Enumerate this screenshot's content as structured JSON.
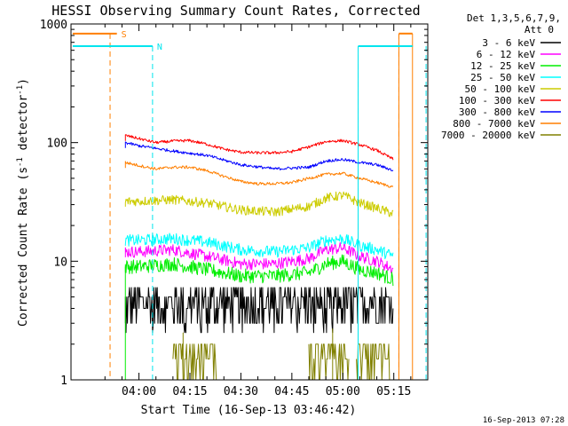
{
  "chart_data": {
    "type": "line",
    "title": "HESSI Observing Summary Count Rates, Corrected",
    "xlabel": "Start Time (16-Sep-13 03:46:42)",
    "ylabel_parts": {
      "base": "Corrected Count Rate (s",
      "sup1": "-1",
      "mid": " detector",
      "sup2": "-1",
      "end": ")"
    },
    "y_scale": "log",
    "ylim": [
      1,
      1000
    ],
    "y_ticks": [
      "1",
      "10",
      "100",
      "1000"
    ],
    "xlim_minutes": [
      -20,
      85
    ],
    "x_ticks": [
      {
        "label": "04:00",
        "minute": 0
      },
      {
        "label": "04:15",
        "minute": 15
      },
      {
        "label": "04:30",
        "minute": 30
      },
      {
        "label": "04:45",
        "minute": 45
      },
      {
        "label": "05:00",
        "minute": 60
      },
      {
        "label": "05:15",
        "minute": 75
      }
    ],
    "legend_header": [
      "Det 1,3,5,6,7,9,",
      "Att 0"
    ],
    "timestamp": "16-Sep-2013 07:28",
    "annotations": [
      {
        "label": "S",
        "color": "#ff7f00",
        "bar_range_minutes": [
          -19.5,
          -6.5
        ],
        "vline_minutes": [
          -8.5,
          76.5
        ],
        "bar_after_minutes": [
          76.5,
          80.5
        ],
        "end_line_minutes": 80.5,
        "y": 830
      },
      {
        "label": "N",
        "color": "#00e5ee",
        "bar_range_minutes": [
          -19.5,
          4
        ],
        "vline_minutes": [
          4,
          64.5,
          84.5
        ],
        "bar_after_minutes": [
          64.5,
          80.5
        ],
        "y": 650
      }
    ],
    "series": [
      {
        "name": "3 - 6 keV",
        "color": "#000000",
        "x": [
          -4,
          0,
          10,
          20,
          30,
          40,
          50,
          60,
          70,
          75
        ],
        "y": [
          4,
          4,
          4,
          4,
          4,
          4,
          4,
          4.5,
          4,
          3.5
        ]
      },
      {
        "name": "6 - 12 keV",
        "color": "#ff00ff",
        "x": [
          -4,
          0,
          10,
          20,
          30,
          40,
          50,
          55,
          60,
          65,
          70,
          75
        ],
        "y": [
          12,
          12,
          12.5,
          11,
          9.5,
          9.5,
          10.5,
          12.5,
          13,
          11,
          10,
          8.5
        ]
      },
      {
        "name": "12 - 25 keV",
        "color": "#00ee00",
        "x": [
          -4,
          0,
          10,
          20,
          30,
          40,
          50,
          55,
          60,
          65,
          70,
          75
        ],
        "y": [
          9,
          9,
          9.5,
          8.5,
          7.5,
          7.5,
          8,
          9.5,
          10,
          8.5,
          8,
          7
        ]
      },
      {
        "name": "25 - 50 keV",
        "color": "#00ffff",
        "x": [
          -4,
          0,
          10,
          20,
          30,
          40,
          50,
          55,
          60,
          65,
          70,
          75
        ],
        "y": [
          15,
          15,
          15.5,
          14.5,
          12.5,
          12,
          13,
          15,
          15.5,
          13.5,
          12.5,
          11
        ]
      },
      {
        "name": "50 - 100 keV",
        "color": "#cccc00",
        "x": [
          -4,
          0,
          10,
          20,
          30,
          40,
          50,
          55,
          60,
          65,
          70,
          75
        ],
        "y": [
          32,
          32,
          33,
          31,
          27,
          26,
          29,
          34,
          36,
          31,
          28,
          25
        ]
      },
      {
        "name": "100 - 300 keV",
        "color": "#ff0000",
        "x": [
          -4,
          0,
          5,
          10,
          15,
          20,
          25,
          30,
          35,
          40,
          45,
          50,
          55,
          60,
          65,
          70,
          75
        ],
        "y": [
          115,
          108,
          100,
          103,
          104,
          97,
          88,
          83,
          82,
          82,
          84,
          92,
          102,
          104,
          96,
          86,
          72
        ]
      },
      {
        "name": "300 - 800 keV",
        "color": "#0000ff",
        "x": [
          -4,
          0,
          10,
          20,
          30,
          40,
          50,
          55,
          60,
          65,
          70,
          75
        ],
        "y": [
          100,
          94,
          85,
          78,
          65,
          60,
          62,
          70,
          72,
          68,
          65,
          58
        ]
      },
      {
        "name": "800 - 7000 keV",
        "color": "#ff7f00",
        "x": [
          -4,
          0,
          5,
          10,
          15,
          20,
          25,
          30,
          35,
          40,
          45,
          50,
          55,
          60,
          65,
          70,
          75
        ],
        "y": [
          68,
          64,
          60,
          62,
          62,
          58,
          52,
          47,
          45,
          45,
          46,
          50,
          54,
          55,
          50,
          46,
          42
        ]
      },
      {
        "name": "7000 - 20000 keV",
        "color": "#808000",
        "x": [
          10,
          12,
          15,
          18,
          20,
          22,
          50,
          52,
          55,
          58,
          60,
          65,
          68,
          70,
          72,
          74
        ],
        "y": [
          1.5,
          2,
          2.5,
          2,
          1.5,
          2,
          1.5,
          2,
          2.5,
          2,
          1.5,
          2,
          1.5,
          2,
          2,
          1.5
        ]
      }
    ]
  }
}
